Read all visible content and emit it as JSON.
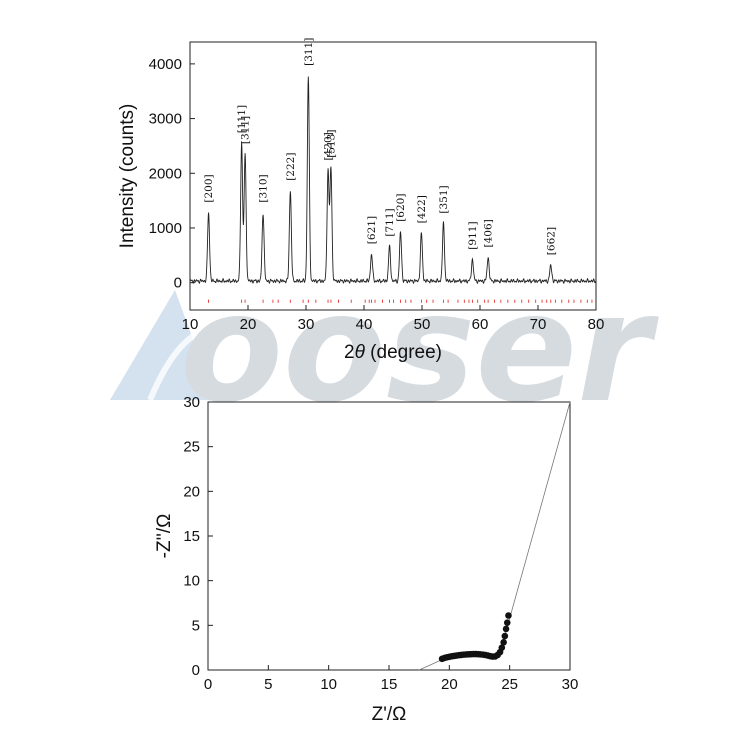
{
  "watermark": {
    "text": "ooser",
    "color": "#d6dbe0",
    "accent": "#c8dbea"
  },
  "chart_data": [
    {
      "type": "line",
      "title": "",
      "xlabel": "2θ (degree)",
      "xlabel_prefix": "2",
      "xlabel_symbol": "θ",
      "xlabel_suffix": " (degree)",
      "ylabel": "Intensity (counts)",
      "xlim": [
        10,
        80
      ],
      "ylim": [
        -500,
        4400
      ],
      "xticks": [
        10,
        20,
        30,
        40,
        50,
        60,
        70,
        80
      ],
      "yticks": [
        0,
        1000,
        2000,
        3000,
        4000
      ],
      "baseline": 30,
      "peaks": [
        {
          "x": 13.2,
          "y": 1280,
          "label": "[200]"
        },
        {
          "x": 18.9,
          "y": 2550,
          "label": "[111]"
        },
        {
          "x": 19.5,
          "y": 2350,
          "label": "[311]"
        },
        {
          "x": 22.6,
          "y": 1280,
          "label": "[310]"
        },
        {
          "x": 27.3,
          "y": 1680,
          "label": "[222]"
        },
        {
          "x": 30.4,
          "y": 3780,
          "label": "[311]"
        },
        {
          "x": 33.8,
          "y": 2050,
          "label": "[420]"
        },
        {
          "x": 34.3,
          "y": 2100,
          "label": "[513]"
        },
        {
          "x": 41.3,
          "y": 520,
          "label": "[621]"
        },
        {
          "x": 44.4,
          "y": 660,
          "label": "[711]"
        },
        {
          "x": 46.3,
          "y": 930,
          "label": "[620]"
        },
        {
          "x": 49.9,
          "y": 900,
          "label": "[422]"
        },
        {
          "x": 53.7,
          "y": 1080,
          "label": "[351]"
        },
        {
          "x": 58.7,
          "y": 420,
          "label": "[911]"
        },
        {
          "x": 61.4,
          "y": 460,
          "label": "[406]"
        },
        {
          "x": 72.2,
          "y": 320,
          "label": "[662]"
        }
      ],
      "reference_ticks": [
        13.2,
        18.9,
        19.5,
        22.6,
        24.3,
        25.2,
        27.3,
        29.5,
        30.4,
        31.7,
        33.8,
        34.3,
        35.6,
        37.8,
        40.2,
        40.9,
        41.3,
        41.9,
        43.2,
        44.4,
        45.1,
        46.3,
        47.2,
        48.1,
        49.9,
        50.8,
        51.9,
        53.7,
        54.5,
        56.2,
        57.3,
        58.1,
        58.7,
        59.6,
        60.8,
        61.4,
        62.5,
        63.6,
        64.8,
        66.0,
        67.2,
        68.4,
        69.6,
        70.7,
        71.5,
        72.2,
        73.0,
        74.1,
        75.3,
        76.2,
        77.4,
        78.5,
        79.3
      ]
    },
    {
      "type": "scatter",
      "title": "",
      "xlabel": "Z'/Ω",
      "ylabel": "-Z''/Ω",
      "xlim": [
        0,
        30
      ],
      "ylim": [
        0,
        30
      ],
      "xticks": [
        0,
        5,
        10,
        15,
        20,
        25,
        30
      ],
      "yticks": [
        0,
        5,
        10,
        15,
        20,
        25,
        30
      ],
      "points": [
        [
          19.4,
          1.25
        ],
        [
          19.6,
          1.35
        ],
        [
          19.8,
          1.42
        ],
        [
          20.0,
          1.48
        ],
        [
          20.2,
          1.53
        ],
        [
          20.4,
          1.58
        ],
        [
          20.6,
          1.62
        ],
        [
          20.8,
          1.66
        ],
        [
          21.0,
          1.69
        ],
        [
          21.2,
          1.72
        ],
        [
          21.4,
          1.74
        ],
        [
          21.6,
          1.76
        ],
        [
          21.8,
          1.77
        ],
        [
          22.0,
          1.78
        ],
        [
          22.2,
          1.78
        ],
        [
          22.4,
          1.77
        ],
        [
          22.6,
          1.75
        ],
        [
          22.8,
          1.72
        ],
        [
          23.0,
          1.68
        ],
        [
          23.2,
          1.62
        ],
        [
          23.4,
          1.55
        ],
        [
          23.6,
          1.5
        ],
        [
          23.8,
          1.52
        ],
        [
          24.0,
          1.68
        ],
        [
          24.2,
          2.0
        ],
        [
          24.35,
          2.5
        ],
        [
          24.5,
          3.1
        ],
        [
          24.6,
          3.8
        ],
        [
          24.7,
          4.6
        ],
        [
          24.8,
          5.3
        ],
        [
          24.9,
          6.1
        ]
      ],
      "fit_line": [
        [
          17.5,
          0
        ],
        [
          19.3,
          1.1
        ],
        [
          21.7,
          1.6
        ],
        [
          23.6,
          1.45
        ],
        [
          24.3,
          2.4
        ],
        [
          30,
          30
        ]
      ]
    }
  ]
}
